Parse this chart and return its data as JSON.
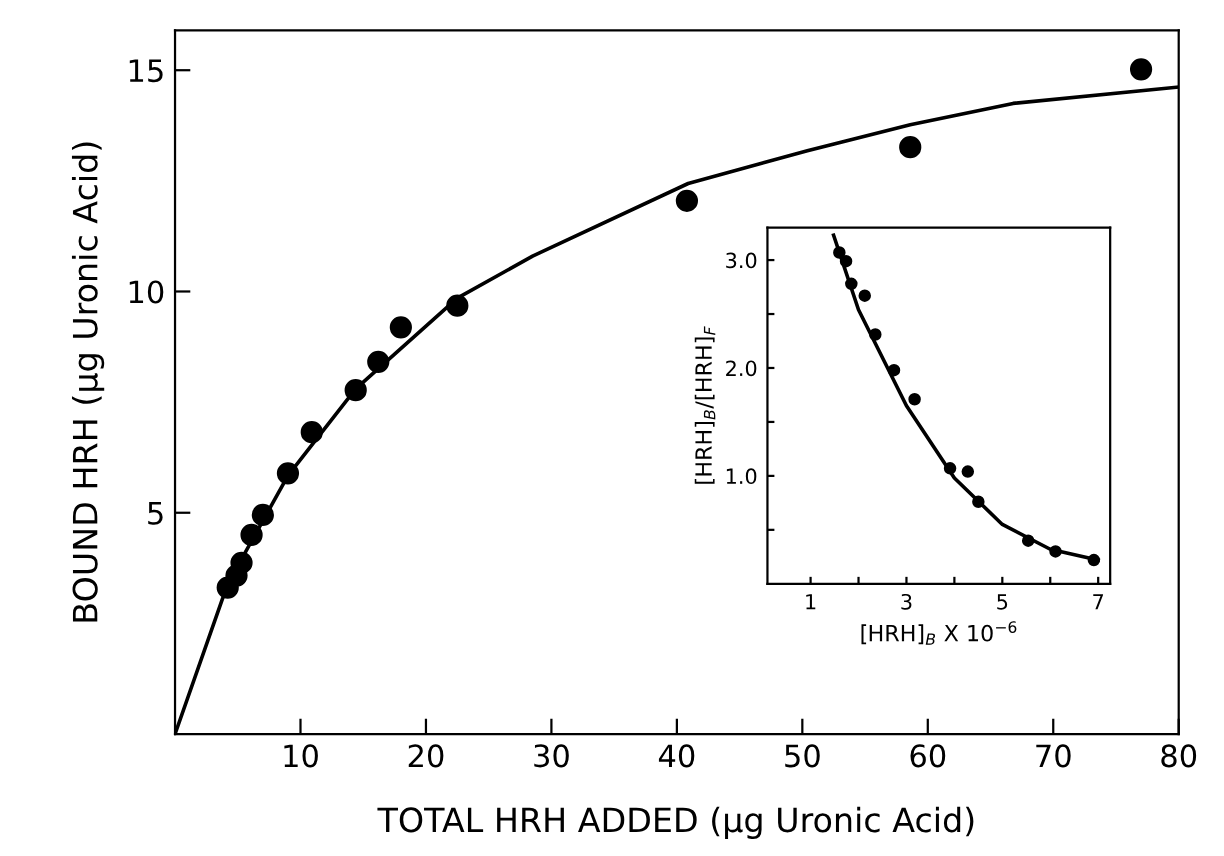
{
  "chart_data": [
    {
      "type": "scatter",
      "xlabel": "TOTAL HRH ADDED (μg Uronic Acid)",
      "ylabel": "BOUND HRH (μg Uronic Acid)",
      "xlim": [
        0,
        80
      ],
      "ylim": [
        0,
        15.9
      ],
      "xticks": [
        10,
        20,
        30,
        40,
        50,
        60,
        70,
        80
      ],
      "yticks": [
        5,
        10,
        15
      ],
      "grid": false,
      "legend": false,
      "series": [
        {
          "color": "#000000",
          "marker": "circle",
          "x": [
            4.2,
            4.9,
            5.3,
            6.1,
            7.0,
            9.0,
            10.9,
            14.4,
            16.2,
            18.0,
            22.5,
            40.8,
            58.6,
            77.0
          ],
          "values": [
            3.31,
            3.58,
            3.87,
            4.5,
            4.95,
            5.89,
            6.82,
            7.77,
            8.41,
            9.19,
            9.68,
            12.05,
            13.26,
            15.02
          ]
        },
        {
          "type": "line",
          "color": "#000000",
          "line_style": "solid",
          "x": [
            0,
            3.8,
            5.3,
            9,
            14.4,
            22.5,
            28.5,
            40.9,
            50.4,
            58.6,
            66.8,
            80
          ],
          "values": [
            0,
            3.07,
            3.95,
            5.84,
            7.8,
            9.85,
            10.8,
            12.44,
            13.18,
            13.77,
            14.25,
            14.62
          ]
        }
      ]
    },
    {
      "type": "scatter",
      "xlabel": "[HRH]$_{B}$ X 10$^{−6}$",
      "ylabel": "[HRH]$_{B}$/[HRH]$_{F}$",
      "xlim": [
        0.1,
        7.25
      ],
      "ylim": [
        0,
        3.3
      ],
      "xticks": [
        1,
        {
          "value": 2,
          "label": null
        },
        3,
        {
          "value": 4,
          "label": null
        },
        5,
        {
          "value": 6,
          "label": null
        },
        7
      ],
      "yticks": [
        {
          "value": 0.5,
          "label": null
        },
        {
          "value": 1,
          "label": "1.0"
        },
        {
          "value": 1.5,
          "label": null
        },
        {
          "value": 2,
          "label": "2.0"
        },
        {
          "value": 2.5,
          "label": null
        },
        {
          "value": 3,
          "label": "3.0"
        }
      ],
      "grid": false,
      "legend": false,
      "series": [
        {
          "color": "#000000",
          "marker": "circle",
          "x": [
            1.6,
            1.74,
            1.85,
            2.13,
            2.35,
            2.74,
            3.17,
            3.91,
            4.28,
            4.5,
            5.54,
            6.11,
            6.91
          ],
          "values": [
            3.07,
            2.99,
            2.78,
            2.67,
            2.31,
            1.98,
            1.71,
            1.07,
            1.04,
            0.76,
            0.4,
            0.3,
            0.22
          ]
        },
        {
          "type": "line",
          "color": "#000000",
          "line_style": "solid",
          "x": [
            1.48,
            2,
            3,
            4,
            5,
            6,
            7
          ],
          "values": [
            3.23,
            2.54,
            1.65,
            0.98,
            0.55,
            0.32,
            0.22
          ]
        }
      ]
    }
  ]
}
